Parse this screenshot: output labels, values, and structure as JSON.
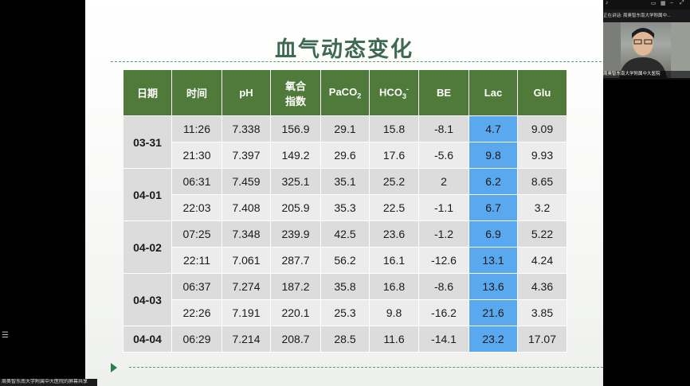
{
  "slide": {
    "title": "血气动态变化",
    "columns": [
      "日期",
      "时间",
      "pH",
      "氧合指数",
      "PaCO",
      "HCO",
      "BE",
      "Lac",
      "Glu"
    ],
    "column_subs": {
      "paco2_sub": "2",
      "hco3_sub": "3",
      "hco3_sup": "-"
    },
    "header_lines": {
      "oxy1": "氧合",
      "oxy2": "指数"
    },
    "groups": [
      {
        "date": "03-31",
        "rows": [
          [
            "11:26",
            "7.338",
            "156.9",
            "29.1",
            "15.8",
            "-8.1",
            "4.7",
            "9.09"
          ],
          [
            "21:30",
            "7.397",
            "149.2",
            "29.6",
            "17.6",
            "-5.6",
            "9.8",
            "9.93"
          ]
        ]
      },
      {
        "date": "04-01",
        "rows": [
          [
            "06:31",
            "7.459",
            "325.1",
            "35.1",
            "25.2",
            "2",
            "6.2",
            "8.65"
          ],
          [
            "22:03",
            "7.408",
            "205.9",
            "35.3",
            "22.5",
            "-1.1",
            "6.7",
            "3.2"
          ]
        ]
      },
      {
        "date": "04-02",
        "rows": [
          [
            "07:25",
            "7.348",
            "239.9",
            "42.5",
            "23.6",
            "-1.2",
            "6.9",
            "5.22"
          ],
          [
            "22:11",
            "7.061",
            "287.7",
            "56.2",
            "16.1",
            "-12.6",
            "13.1",
            "4.24"
          ]
        ]
      },
      {
        "date": "04-03",
        "rows": [
          [
            "06:37",
            "7.274",
            "187.2",
            "35.8",
            "16.8",
            "-8.6",
            "13.6",
            "4.36"
          ],
          [
            "22:26",
            "7.191",
            "220.1",
            "25.3",
            "9.8",
            "-16.2",
            "21.6",
            "3.85"
          ]
        ]
      },
      {
        "date": "04-04",
        "rows": [
          [
            "06:29",
            "7.214",
            "208.7",
            "28.5",
            "11.6",
            "-14.1",
            "23.2",
            "17.07"
          ]
        ]
      }
    ]
  },
  "share_bar": {
    "label": "周奥智东南大学附属中大医院的屏幕共享"
  },
  "camera": {
    "status": "正在讲话: 周奥智东南大学附属中...",
    "caption": "周奥智东南大学附属中大医院"
  },
  "colors": {
    "header_green": "#4f7a3a",
    "lac_blue": "#5aa9ee",
    "title_green": "#3f6a52"
  }
}
